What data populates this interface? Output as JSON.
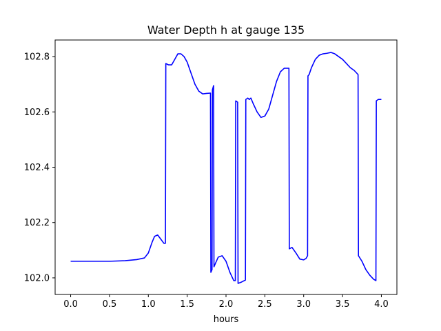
{
  "chart_data": {
    "type": "line",
    "title": "Water Depth h at gauge 135",
    "xlabel": "hours",
    "ylabel": "",
    "xlim": [
      -0.2,
      4.2
    ],
    "ylim": [
      101.94,
      102.86
    ],
    "grid": false,
    "xticks": [
      0.0,
      0.5,
      1.0,
      1.5,
      2.0,
      2.5,
      3.0,
      3.5,
      4.0
    ],
    "xtick_labels": [
      "0.0",
      "0.5",
      "1.0",
      "1.5",
      "2.0",
      "2.5",
      "3.0",
      "3.5",
      "4.0"
    ],
    "yticks": [
      102.0,
      102.2,
      102.4,
      102.6,
      102.8
    ],
    "ytick_labels": [
      "102.0",
      "102.2",
      "102.4",
      "102.6",
      "102.8"
    ],
    "series": [
      {
        "color": "#0000ff",
        "x": [
          0.0,
          0.5,
          0.7,
          0.85,
          0.95,
          1.0,
          1.05,
          1.08,
          1.12,
          1.16,
          1.2,
          1.22,
          1.225,
          1.26,
          1.3,
          1.34,
          1.38,
          1.42,
          1.46,
          1.5,
          1.55,
          1.6,
          1.65,
          1.7,
          1.75,
          1.8,
          1.805,
          1.82,
          1.825,
          1.84,
          1.845,
          1.86,
          1.9,
          1.95,
          2.0,
          2.05,
          2.1,
          2.12,
          2.125,
          2.15,
          2.155,
          2.2,
          2.25,
          2.255,
          2.28,
          2.3,
          2.32,
          2.35,
          2.4,
          2.45,
          2.5,
          2.55,
          2.6,
          2.65,
          2.7,
          2.75,
          2.8,
          2.81,
          2.815,
          2.85,
          2.9,
          2.95,
          3.0,
          3.03,
          3.05,
          3.055,
          3.07,
          3.1,
          3.15,
          3.2,
          3.25,
          3.3,
          3.35,
          3.4,
          3.45,
          3.5,
          3.55,
          3.6,
          3.65,
          3.7,
          3.705,
          3.75,
          3.8,
          3.85,
          3.9,
          3.93,
          3.935,
          3.96,
          4.0
        ],
        "values": [
          102.06,
          102.06,
          102.062,
          102.066,
          102.072,
          102.09,
          102.13,
          102.15,
          102.155,
          102.14,
          102.125,
          102.125,
          102.775,
          102.77,
          102.77,
          102.79,
          102.81,
          102.81,
          102.8,
          102.78,
          102.74,
          102.7,
          102.675,
          102.665,
          102.667,
          102.668,
          102.02,
          102.03,
          102.68,
          102.695,
          102.04,
          102.05,
          102.075,
          102.08,
          102.06,
          102.02,
          101.99,
          101.99,
          102.64,
          102.635,
          101.98,
          101.985,
          101.992,
          102.645,
          102.65,
          102.645,
          102.65,
          102.63,
          102.6,
          102.58,
          102.585,
          102.61,
          102.66,
          102.71,
          102.745,
          102.758,
          102.758,
          102.758,
          102.105,
          102.11,
          102.09,
          102.068,
          102.065,
          102.07,
          102.08,
          102.73,
          102.735,
          102.76,
          102.79,
          102.805,
          102.81,
          102.812,
          102.815,
          102.81,
          102.8,
          102.79,
          102.775,
          102.76,
          102.75,
          102.735,
          102.08,
          102.06,
          102.03,
          102.01,
          101.995,
          101.99,
          102.64,
          102.645,
          102.645
        ]
      }
    ]
  }
}
